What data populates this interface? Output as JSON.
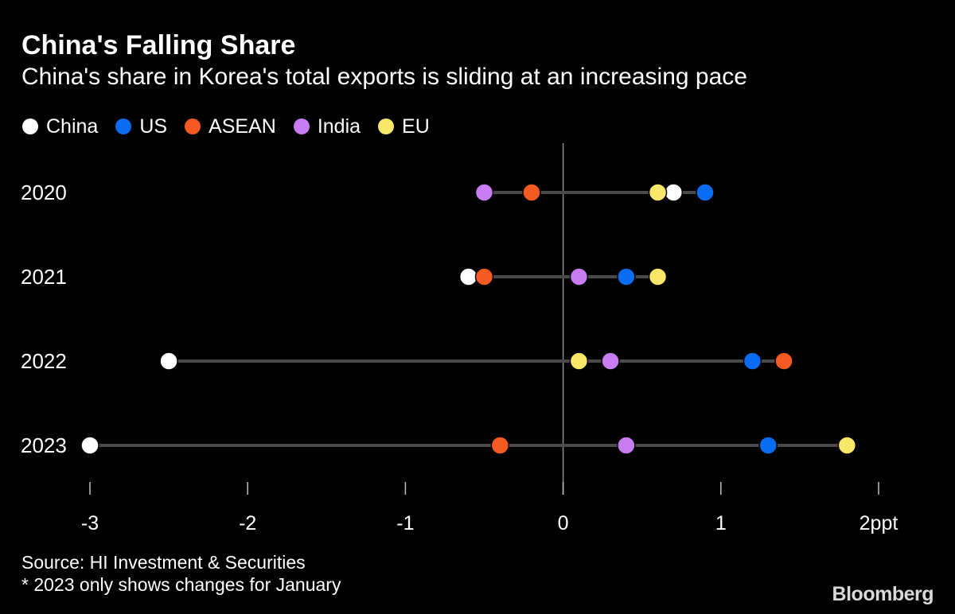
{
  "header": {
    "title": "China's Falling Share",
    "subtitle": "China's share in Korea's total exports is sliding at an increasing pace"
  },
  "footer": {
    "source": "Source: HI Investment & Securities",
    "note": "* 2023 only shows changes for January",
    "brand": "Bloomberg"
  },
  "colors": {
    "background": "#000000",
    "China": "#ffffff",
    "US": "#0a6cf0",
    "ASEAN": "#f55a22",
    "India": "#c77cf2",
    "EU": "#f9e76a",
    "line": "#4a4a4a",
    "axis": "#8c8c8c"
  },
  "chart_data": {
    "type": "dot-range",
    "title": "China's Falling Share",
    "subtitle": "China's share in Korea's total exports is sliding at an increasing pace",
    "xlabel": "",
    "ylabel": "",
    "x_unit": "ppt",
    "xlim": [
      -3,
      2
    ],
    "x_ticks": [
      -3,
      -2,
      -1,
      0,
      1,
      2
    ],
    "x_tick_labels": [
      "-3",
      "-2",
      "-1",
      "0",
      "1",
      "2ppt"
    ],
    "legend_position": "top-left",
    "categories": [
      "2020",
      "2021",
      "2022",
      "2023"
    ],
    "series": [
      {
        "name": "China",
        "values": [
          0.7,
          -0.6,
          -2.5,
          -3.0
        ]
      },
      {
        "name": "US",
        "values": [
          0.9,
          0.4,
          1.2,
          1.3
        ]
      },
      {
        "name": "ASEAN",
        "values": [
          -0.2,
          -0.5,
          1.4,
          -0.4
        ]
      },
      {
        "name": "India",
        "values": [
          -0.5,
          0.1,
          0.3,
          0.4
        ]
      },
      {
        "name": "EU",
        "values": [
          0.6,
          0.6,
          0.1,
          1.8
        ]
      }
    ]
  }
}
